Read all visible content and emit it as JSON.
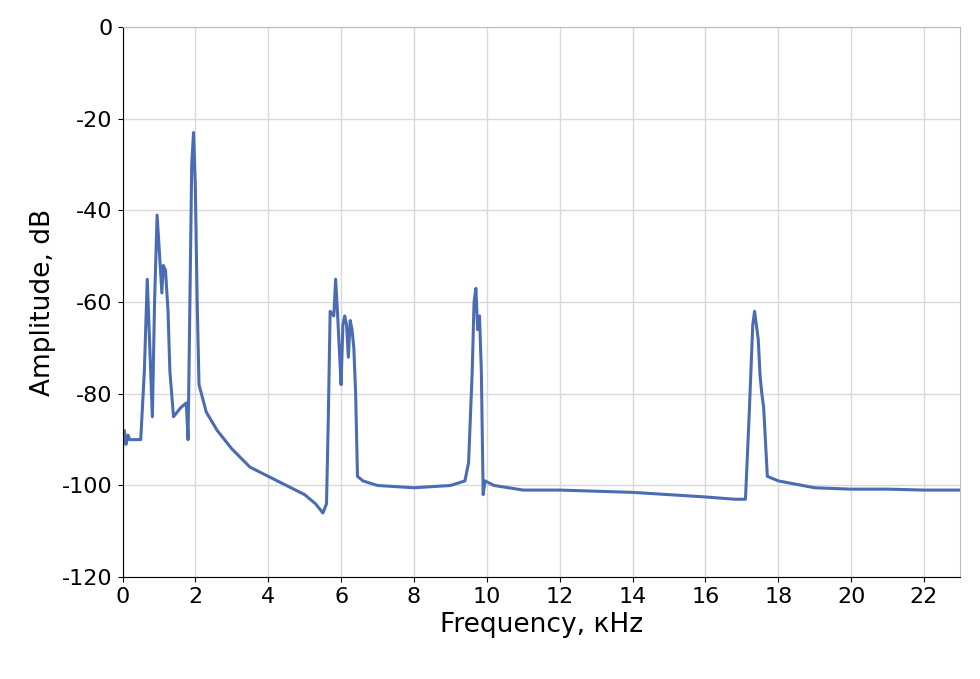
{
  "chart_data": {
    "type": "line",
    "x_label": "Frequency, кHz",
    "y_label": "Amplitude, dB",
    "x": [
      0,
      0.05,
      0.1,
      0.15,
      0.2,
      0.5,
      0.6,
      0.68,
      0.75,
      0.82,
      0.88,
      0.95,
      1.02,
      1.08,
      1.12,
      1.18,
      1.25,
      1.3,
      1.4,
      1.6,
      1.75,
      1.8,
      1.85,
      1.9,
      1.95,
      2.0,
      2.05,
      2.1,
      2.3,
      2.6,
      3.0,
      3.5,
      4.0,
      4.5,
      5.0,
      5.3,
      5.5,
      5.6,
      5.65,
      5.7,
      5.8,
      5.85,
      5.9,
      5.95,
      6.0,
      6.05,
      6.1,
      6.15,
      6.2,
      6.25,
      6.3,
      6.35,
      6.4,
      6.45,
      6.6,
      7,
      8,
      9,
      9.4,
      9.5,
      9.6,
      9.65,
      9.7,
      9.75,
      9.8,
      9.85,
      9.9,
      9.95,
      10.2,
      11,
      12,
      14,
      16,
      16.8,
      17.1,
      17.2,
      17.3,
      17.35,
      17.45,
      17.5,
      17.55,
      17.6,
      17.7,
      18,
      19,
      20,
      21,
      22,
      23
    ],
    "values": [
      -92,
      -88,
      -91,
      -89,
      -90,
      -90,
      -75,
      -55,
      -70,
      -85,
      -60,
      -41,
      -50,
      -58,
      -52,
      -53,
      -62,
      -75,
      -85,
      -83,
      -82,
      -90,
      -60,
      -30,
      -23,
      -35,
      -60,
      -78,
      -84,
      -88,
      -92,
      -96,
      -98,
      -100,
      -102,
      -104,
      -106,
      -104,
      -85,
      -62,
      -63,
      -55,
      -62,
      -70,
      -78,
      -65,
      -63,
      -65,
      -72,
      -64,
      -66,
      -70,
      -80,
      -98,
      -99,
      -100,
      -100.5,
      -100,
      -99,
      -95,
      -75,
      -60,
      -57,
      -66,
      -63,
      -75,
      -102,
      -99,
      -100,
      -101,
      -101,
      -101.5,
      -102.5,
      -103,
      -103,
      -85,
      -65,
      -62,
      -68,
      -76,
      -80,
      -83,
      -98,
      -99,
      -100.5,
      -100.8,
      -100.8,
      -101,
      -101
    ],
    "color": "#4a6cb3",
    "xlim": [
      0,
      23
    ],
    "xticks": [
      0,
      2,
      4,
      6,
      8,
      10,
      12,
      14,
      16,
      18,
      20,
      22
    ],
    "ylim": [
      -120,
      0
    ],
    "yticks": [
      -120,
      -100,
      -80,
      -60,
      -40,
      -20,
      0
    ],
    "grid": true
  }
}
